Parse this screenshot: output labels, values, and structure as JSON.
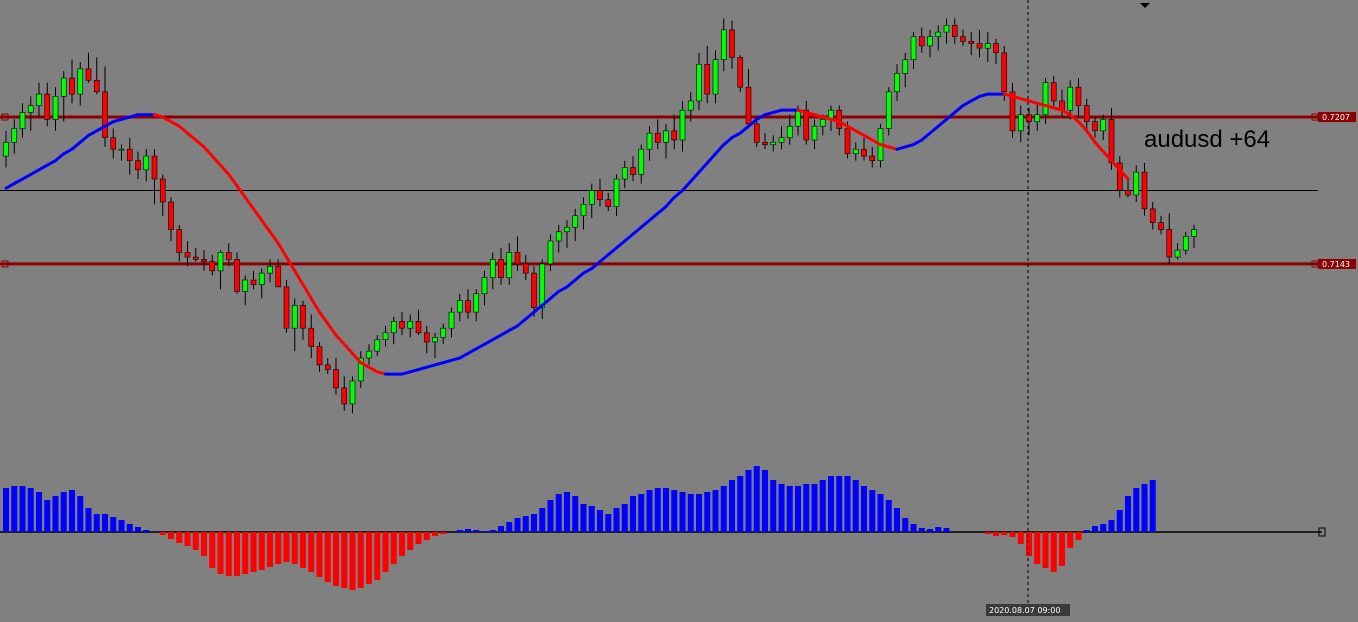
{
  "chart_data": {
    "type": "candlestick",
    "symbol_annotation": "audusd  +64",
    "levels": [
      {
        "name": "resistance",
        "price": 0.7207,
        "label": "0.7207"
      },
      {
        "name": "support",
        "price": 0.7143,
        "label": "0.7143"
      },
      {
        "name": "mid-line",
        "price": 0.7175,
        "label": ""
      }
    ],
    "crosshair_time_label": "2020.08.07 09:00",
    "price_range": [
      0.7075,
      0.7258
    ],
    "colors": {
      "background": "#808080",
      "bull": "#00ff00",
      "bear": "#ff0000",
      "wick": "#000000",
      "level": "#8b0000",
      "ma_up": "#0000ff",
      "ma_down": "#ff0000",
      "hist_pos": "#0000ff",
      "hist_neg": "#ff0000"
    },
    "candles": [
      [
        0.719,
        0.7201,
        0.7185,
        0.7196
      ],
      [
        0.7196,
        0.7206,
        0.7191,
        0.7202
      ],
      [
        0.7202,
        0.7213,
        0.7198,
        0.7209
      ],
      [
        0.7209,
        0.7216,
        0.7201,
        0.7212
      ],
      [
        0.7212,
        0.7222,
        0.7207,
        0.7217
      ],
      [
        0.7217,
        0.7222,
        0.7203,
        0.7206
      ],
      [
        0.7206,
        0.722,
        0.7201,
        0.7216
      ],
      [
        0.7216,
        0.7227,
        0.7205,
        0.7224
      ],
      [
        0.7224,
        0.7232,
        0.7213,
        0.7217
      ],
      [
        0.7217,
        0.7231,
        0.7212,
        0.7228
      ],
      [
        0.7228,
        0.7235,
        0.7222,
        0.7223
      ],
      [
        0.7223,
        0.7233,
        0.7217,
        0.7218
      ],
      [
        0.7218,
        0.7229,
        0.7194,
        0.7198
      ],
      [
        0.7198,
        0.7202,
        0.7189,
        0.7193
      ],
      [
        0.7193,
        0.7195,
        0.7188,
        0.7193
      ],
      [
        0.7193,
        0.7198,
        0.7182,
        0.7188
      ],
      [
        0.7188,
        0.7192,
        0.718,
        0.7184
      ],
      [
        0.7184,
        0.7193,
        0.7179,
        0.719
      ],
      [
        0.719,
        0.7193,
        0.7169,
        0.718
      ],
      [
        0.718,
        0.7182,
        0.7164,
        0.717
      ],
      [
        0.717,
        0.7172,
        0.7153,
        0.7158
      ],
      [
        0.7158,
        0.716,
        0.7144,
        0.7148
      ],
      [
        0.7148,
        0.7153,
        0.7142,
        0.7146
      ],
      [
        0.7146,
        0.715,
        0.7144,
        0.7145
      ],
      [
        0.7145,
        0.7149,
        0.714,
        0.7144
      ],
      [
        0.7144,
        0.7147,
        0.7138,
        0.714
      ],
      [
        0.714,
        0.7149,
        0.7132,
        0.7148
      ],
      [
        0.7148,
        0.7152,
        0.7142,
        0.7145
      ],
      [
        0.7145,
        0.7148,
        0.713,
        0.7131
      ],
      [
        0.7131,
        0.7138,
        0.7125,
        0.7136
      ],
      [
        0.7136,
        0.714,
        0.7132,
        0.7134
      ],
      [
        0.7134,
        0.7141,
        0.7128,
        0.7139
      ],
      [
        0.7139,
        0.7145,
        0.7135,
        0.7142
      ],
      [
        0.7142,
        0.7145,
        0.7133,
        0.7133
      ],
      [
        0.7133,
        0.7136,
        0.7113,
        0.7115
      ],
      [
        0.7115,
        0.7128,
        0.7105,
        0.7125
      ],
      [
        0.7125,
        0.7127,
        0.711,
        0.7115
      ],
      [
        0.7115,
        0.7121,
        0.7102,
        0.7107
      ],
      [
        0.7107,
        0.7109,
        0.7096,
        0.7099
      ],
      [
        0.7099,
        0.7102,
        0.7095,
        0.7097
      ],
      [
        0.7097,
        0.7102,
        0.7086,
        0.7089
      ],
      [
        0.7089,
        0.7094,
        0.7079,
        0.7082
      ],
      [
        0.7082,
        0.7094,
        0.7078,
        0.7092
      ],
      [
        0.7092,
        0.7105,
        0.7089,
        0.7102
      ],
      [
        0.7102,
        0.7108,
        0.7099,
        0.7105
      ],
      [
        0.7105,
        0.7112,
        0.7103,
        0.711
      ],
      [
        0.711,
        0.7116,
        0.7107,
        0.7113
      ],
      [
        0.7113,
        0.712,
        0.7108,
        0.7118
      ],
      [
        0.7118,
        0.7122,
        0.7112,
        0.7115
      ],
      [
        0.7115,
        0.7121,
        0.7111,
        0.7118
      ],
      [
        0.7118,
        0.7123,
        0.7112,
        0.7113
      ],
      [
        0.7113,
        0.7116,
        0.7104,
        0.7109
      ],
      [
        0.7109,
        0.7113,
        0.7102,
        0.7111
      ],
      [
        0.7111,
        0.7117,
        0.7108,
        0.7115
      ],
      [
        0.7115,
        0.7124,
        0.7111,
        0.7122
      ],
      [
        0.7122,
        0.713,
        0.7118,
        0.7127
      ],
      [
        0.7127,
        0.7132,
        0.7119,
        0.7122
      ],
      [
        0.7122,
        0.7132,
        0.7118,
        0.713
      ],
      [
        0.713,
        0.714,
        0.7125,
        0.7137
      ],
      [
        0.7137,
        0.7148,
        0.7132,
        0.7145
      ],
      [
        0.7145,
        0.715,
        0.7134,
        0.7137
      ],
      [
        0.7137,
        0.7152,
        0.7134,
        0.7148
      ],
      [
        0.7148,
        0.7155,
        0.714,
        0.7143
      ],
      [
        0.7143,
        0.7147,
        0.7136,
        0.7139
      ],
      [
        0.7139,
        0.7142,
        0.712,
        0.7124
      ],
      [
        0.7124,
        0.7145,
        0.7119,
        0.7143
      ],
      [
        0.7143,
        0.7156,
        0.714,
        0.7153
      ],
      [
        0.7153,
        0.716,
        0.7148,
        0.7157
      ],
      [
        0.7157,
        0.7162,
        0.715,
        0.7159
      ],
      [
        0.7159,
        0.7167,
        0.7153,
        0.7164
      ],
      [
        0.7164,
        0.7172,
        0.7158,
        0.7169
      ],
      [
        0.7169,
        0.7178,
        0.7163,
        0.7175
      ],
      [
        0.7175,
        0.718,
        0.7168,
        0.7171
      ],
      [
        0.7171,
        0.7174,
        0.7166,
        0.7168
      ],
      [
        0.7168,
        0.7182,
        0.7164,
        0.718
      ],
      [
        0.718,
        0.7188,
        0.7176,
        0.7185
      ],
      [
        0.7185,
        0.719,
        0.7179,
        0.7182
      ],
      [
        0.7182,
        0.7195,
        0.7178,
        0.7193
      ],
      [
        0.7193,
        0.7203,
        0.7188,
        0.72
      ],
      [
        0.72,
        0.7206,
        0.7193,
        0.7196
      ],
      [
        0.7196,
        0.7204,
        0.7189,
        0.7201
      ],
      [
        0.7201,
        0.7208,
        0.7193,
        0.7197
      ],
      [
        0.7197,
        0.7214,
        0.7192,
        0.721
      ],
      [
        0.721,
        0.7218,
        0.7205,
        0.7214
      ],
      [
        0.7214,
        0.7235,
        0.721,
        0.723
      ],
      [
        0.723,
        0.7238,
        0.7213,
        0.7217
      ],
      [
        0.7217,
        0.7236,
        0.7213,
        0.7232
      ],
      [
        0.7232,
        0.725,
        0.7227,
        0.7245
      ],
      [
        0.7245,
        0.7249,
        0.7228,
        0.7233
      ],
      [
        0.7233,
        0.7234,
        0.7218,
        0.722
      ],
      [
        0.722,
        0.7228,
        0.7202,
        0.7204
      ],
      [
        0.7204,
        0.7207,
        0.7194,
        0.7196
      ],
      [
        0.7196,
        0.72,
        0.7193,
        0.7195
      ],
      [
        0.7195,
        0.7199,
        0.7192,
        0.7196
      ],
      [
        0.7196,
        0.7203,
        0.7193,
        0.7198
      ],
      [
        0.7198,
        0.7208,
        0.7195,
        0.7203
      ],
      [
        0.7203,
        0.7212,
        0.7199,
        0.721
      ],
      [
        0.721,
        0.7214,
        0.7195,
        0.7197
      ],
      [
        0.7197,
        0.7206,
        0.7193,
        0.7203
      ],
      [
        0.7203,
        0.7208,
        0.7199,
        0.7206
      ],
      [
        0.7206,
        0.7212,
        0.7201,
        0.721
      ],
      [
        0.721,
        0.7212,
        0.7199,
        0.7202
      ],
      [
        0.7202,
        0.7205,
        0.7189,
        0.7191
      ],
      [
        0.7191,
        0.7196,
        0.7188,
        0.7193
      ],
      [
        0.7193,
        0.7198,
        0.7188,
        0.719
      ],
      [
        0.719,
        0.7194,
        0.7185,
        0.7188
      ],
      [
        0.7188,
        0.7204,
        0.7185,
        0.7202
      ],
      [
        0.7202,
        0.722,
        0.7199,
        0.7218
      ],
      [
        0.7218,
        0.723,
        0.7214,
        0.7226
      ],
      [
        0.7226,
        0.7235,
        0.722,
        0.7232
      ],
      [
        0.7232,
        0.7244,
        0.7228,
        0.7242
      ],
      [
        0.7242,
        0.7246,
        0.7235,
        0.7238
      ],
      [
        0.7238,
        0.7245,
        0.7233,
        0.7242
      ],
      [
        0.7242,
        0.7247,
        0.7236,
        0.7244
      ],
      [
        0.7244,
        0.725,
        0.7239,
        0.7247
      ],
      [
        0.7247,
        0.725,
        0.7239,
        0.7242
      ],
      [
        0.7242,
        0.7245,
        0.7238,
        0.724
      ],
      [
        0.724,
        0.7244,
        0.7234,
        0.7239
      ],
      [
        0.7239,
        0.7245,
        0.7233,
        0.7237
      ],
      [
        0.7237,
        0.7244,
        0.7231,
        0.7239
      ],
      [
        0.7239,
        0.7241,
        0.723,
        0.7235
      ],
      [
        0.7235,
        0.7238,
        0.7214,
        0.7218
      ],
      [
        0.7218,
        0.7222,
        0.7198,
        0.7201
      ],
      [
        0.7201,
        0.7212,
        0.7196,
        0.7208
      ],
      [
        0.7208,
        0.7211,
        0.7199,
        0.7205
      ],
      [
        0.7205,
        0.7213,
        0.7201,
        0.7208
      ],
      [
        0.7208,
        0.7224,
        0.7204,
        0.7222
      ],
      [
        0.7222,
        0.7225,
        0.7211,
        0.7214
      ],
      [
        0.7214,
        0.7219,
        0.7207,
        0.721
      ],
      [
        0.721,
        0.7223,
        0.7206,
        0.722
      ],
      [
        0.722,
        0.7224,
        0.7207,
        0.7212
      ],
      [
        0.7212,
        0.7215,
        0.7201,
        0.7205
      ],
      [
        0.7205,
        0.7207,
        0.7198,
        0.7201
      ],
      [
        0.7201,
        0.7208,
        0.7197,
        0.7206
      ],
      [
        0.7206,
        0.7211,
        0.7184,
        0.7187
      ],
      [
        0.7187,
        0.719,
        0.7172,
        0.7175
      ],
      [
        0.7175,
        0.718,
        0.7172,
        0.7173
      ],
      [
        0.7173,
        0.7186,
        0.717,
        0.7183
      ],
      [
        0.7183,
        0.7187,
        0.7164,
        0.7167
      ],
      [
        0.7167,
        0.717,
        0.7158,
        0.7161
      ],
      [
        0.7161,
        0.7164,
        0.7156,
        0.7158
      ],
      [
        0.7158,
        0.7165,
        0.7143,
        0.7146
      ],
      [
        0.7146,
        0.7152,
        0.7145,
        0.7149
      ],
      [
        0.7149,
        0.7157,
        0.7147,
        0.7155
      ],
      [
        0.7155,
        0.716,
        0.715,
        0.7158
      ]
    ],
    "ma_line": [
      0.7176,
      0.7178,
      0.718,
      0.7182,
      0.7184,
      0.7186,
      0.7188,
      0.7191,
      0.7193,
      0.7196,
      0.7199,
      0.7201,
      0.7203,
      0.7205,
      0.7206,
      0.7207,
      0.7208,
      0.7208,
      0.7208,
      0.7207,
      0.7205,
      0.7203,
      0.72,
      0.7197,
      0.7194,
      0.719,
      0.7186,
      0.7182,
      0.7177,
      0.7172,
      0.7167,
      0.7162,
      0.7157,
      0.7152,
      0.7146,
      0.714,
      0.7134,
      0.7128,
      0.7122,
      0.7117,
      0.7112,
      0.7108,
      0.7104,
      0.71,
      0.7098,
      0.7096,
      0.7095,
      0.7095,
      0.7095,
      0.7096,
      0.7097,
      0.7098,
      0.7099,
      0.71,
      0.7101,
      0.7102,
      0.7104,
      0.7106,
      0.7108,
      0.711,
      0.7112,
      0.7114,
      0.7116,
      0.7119,
      0.7122,
      0.7125,
      0.7128,
      0.7131,
      0.7133,
      0.7136,
      0.7139,
      0.7141,
      0.7144,
      0.7147,
      0.715,
      0.7153,
      0.7156,
      0.7159,
      0.7162,
      0.7165,
      0.7168,
      0.7172,
      0.7175,
      0.7179,
      0.7183,
      0.7187,
      0.7191,
      0.7195,
      0.7198,
      0.72,
      0.7203,
      0.7206,
      0.7208,
      0.7209,
      0.721,
      0.721,
      0.721,
      0.7209,
      0.7208,
      0.7207,
      0.7206,
      0.7205,
      0.7203,
      0.7201,
      0.7199,
      0.7197,
      0.7195,
      0.7194,
      0.7193,
      0.7194,
      0.7195,
      0.7197,
      0.72,
      0.7203,
      0.7206,
      0.7209,
      0.7212,
      0.7214,
      0.7216,
      0.7217,
      0.7217,
      0.7217,
      0.7216,
      0.7215,
      0.7214,
      0.7213,
      0.7212,
      0.7211,
      0.721,
      0.7208,
      0.7205,
      0.7201,
      0.7196,
      0.7192,
      0.7188,
      0.7184,
      0.718
    ],
    "histogram": [
      44,
      46,
      46,
      44,
      40,
      32,
      36,
      40,
      42,
      36,
      24,
      18,
      18,
      15,
      12,
      8,
      5,
      2,
      0,
      -3,
      -7,
      -11,
      -14,
      -18,
      -24,
      -36,
      -42,
      -44,
      -44,
      -42,
      -40,
      -38,
      -35,
      -32,
      -30,
      -32,
      -36,
      -40,
      -45,
      -50,
      -54,
      -56,
      -58,
      -56,
      -52,
      -48,
      -40,
      -32,
      -24,
      -18,
      -12,
      -8,
      -4,
      -2,
      0,
      2,
      3,
      2,
      1,
      2,
      6,
      10,
      14,
      16,
      18,
      24,
      32,
      38,
      40,
      36,
      28,
      26,
      22,
      18,
      24,
      28,
      36,
      38,
      42,
      44,
      44,
      42,
      40,
      38,
      38,
      40,
      42,
      46,
      52,
      56,
      62,
      66,
      62,
      52,
      48,
      46,
      46,
      48,
      48,
      52,
      56,
      56,
      56,
      52,
      46,
      42,
      38,
      32,
      24,
      14,
      8,
      4,
      3,
      5,
      4,
      0,
      0,
      0,
      0,
      -2,
      -4,
      -3,
      -5,
      -12,
      -24,
      -32,
      -36,
      -40,
      -34,
      -16,
      -8,
      2,
      6,
      8,
      12,
      22,
      36,
      44,
      48,
      52
    ]
  }
}
